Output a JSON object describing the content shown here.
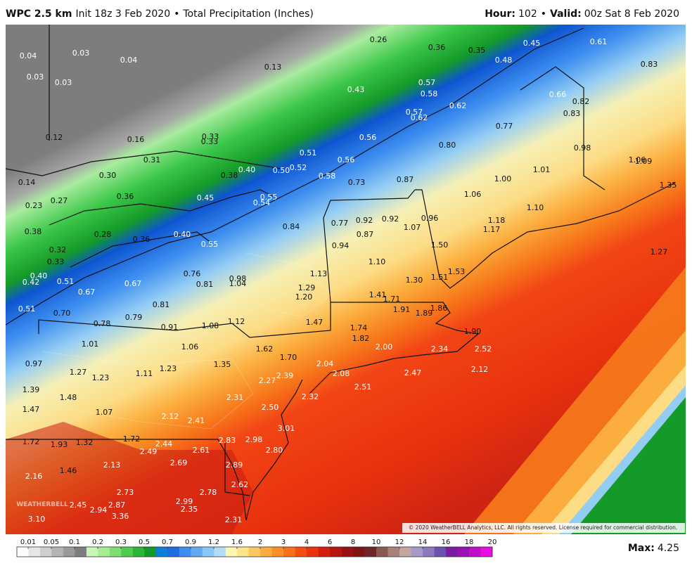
{
  "header": {
    "model": "WPC 2.5 km",
    "init": "Init 18z 3 Feb 2020",
    "separator": "•",
    "product": "Total Precipitation (Inches)",
    "hour_label": "Hour:",
    "hour": "102",
    "valid_label": "Valid:",
    "valid": "00z Sat 8 Feb 2020"
  },
  "map_labels": [
    "0.04",
    "0.03",
    "0.04",
    "0.03",
    "0.03",
    "0.13",
    "0.26",
    "0.36",
    "0.35",
    "0.45",
    "0.61",
    "0.48",
    "0.83",
    "0.43",
    "0.57",
    "0.58",
    "0.66",
    "0.82",
    "0.62",
    "0.57",
    "0.62",
    "0.83",
    "0.77",
    "0.12",
    "0.16",
    "0.33",
    "0.33",
    "0.56",
    "0.80",
    "0.98",
    "0.31",
    "0.51",
    "0.56",
    "1.06",
    "1.09",
    "0.52",
    "0.50",
    "0.40",
    "0.30",
    "0.38",
    "0.58",
    "1.01",
    "0.14",
    "0.73",
    "0.87",
    "1.00",
    "1.35",
    "0.36",
    "0.27",
    "0.45",
    "0.55",
    "0.54",
    "1.06",
    "0.23",
    "1.10",
    "0.77",
    "0.92",
    "0.92",
    "0.96",
    "1.18",
    "0.84",
    "1.07",
    "1.17",
    "0.38",
    "0.28",
    "0.36",
    "0.40",
    "0.87",
    "0.55",
    "0.94",
    "1.50",
    "0.32",
    "1.27",
    "0.33",
    "1.10",
    "0.76",
    "1.13",
    "1.53",
    "0.40",
    "0.42",
    "0.51",
    "0.98",
    "1.04",
    "1.51",
    "1.30",
    "0.81",
    "0.67",
    "1.29",
    "0.67",
    "1.41",
    "1.71",
    "1.20",
    "0.81",
    "1.91",
    "1.89",
    "1.86",
    "0.51",
    "0.70",
    "0.79",
    "1.47",
    "1.12",
    "0.78",
    "0.91",
    "1.08",
    "1.74",
    "1.90",
    "1.82",
    "1.01",
    "1.06",
    "1.62",
    "2.00",
    "2.34",
    "2.52",
    "1.70",
    "0.97",
    "1.35",
    "2.04",
    "2.12",
    "1.27",
    "1.23",
    "1.11",
    "2.08",
    "2.47",
    "1.23",
    "2.39",
    "2.27",
    "2.51",
    "1.39",
    "2.32",
    "2.31",
    "1.48",
    "2.50",
    "1.47",
    "1.07",
    "2.12",
    "2.41",
    "3.01",
    "1.72",
    "2.83",
    "2.98",
    "1.72",
    "1.93",
    "1.32",
    "2.44",
    "2.61",
    "2.80",
    "2.49",
    "2.89",
    "2.13",
    "2.69",
    "1.46",
    "2.16",
    "2.62",
    "2.73",
    "2.78",
    "2.99",
    "2.87",
    "2.45",
    "2.94",
    "2.35",
    "3.36",
    "3.10",
    "2.31"
  ],
  "watermark": "WEATHERBELL",
  "copyright": "© 2020 WeatherBELL Analytics, LLC. All rights reserved. License required for commercial distribution.",
  "legend": {
    "ticks": [
      "0.01",
      "0.05",
      "0.1",
      "0.2",
      "0.3",
      "0.5",
      "0.7",
      "0.9",
      "1.2",
      "1.6",
      "2",
      "3",
      "4",
      "6",
      "8",
      "10",
      "12",
      "14",
      "16",
      "18",
      "20"
    ],
    "max_label": "Max:",
    "max": "4.25"
  }
}
